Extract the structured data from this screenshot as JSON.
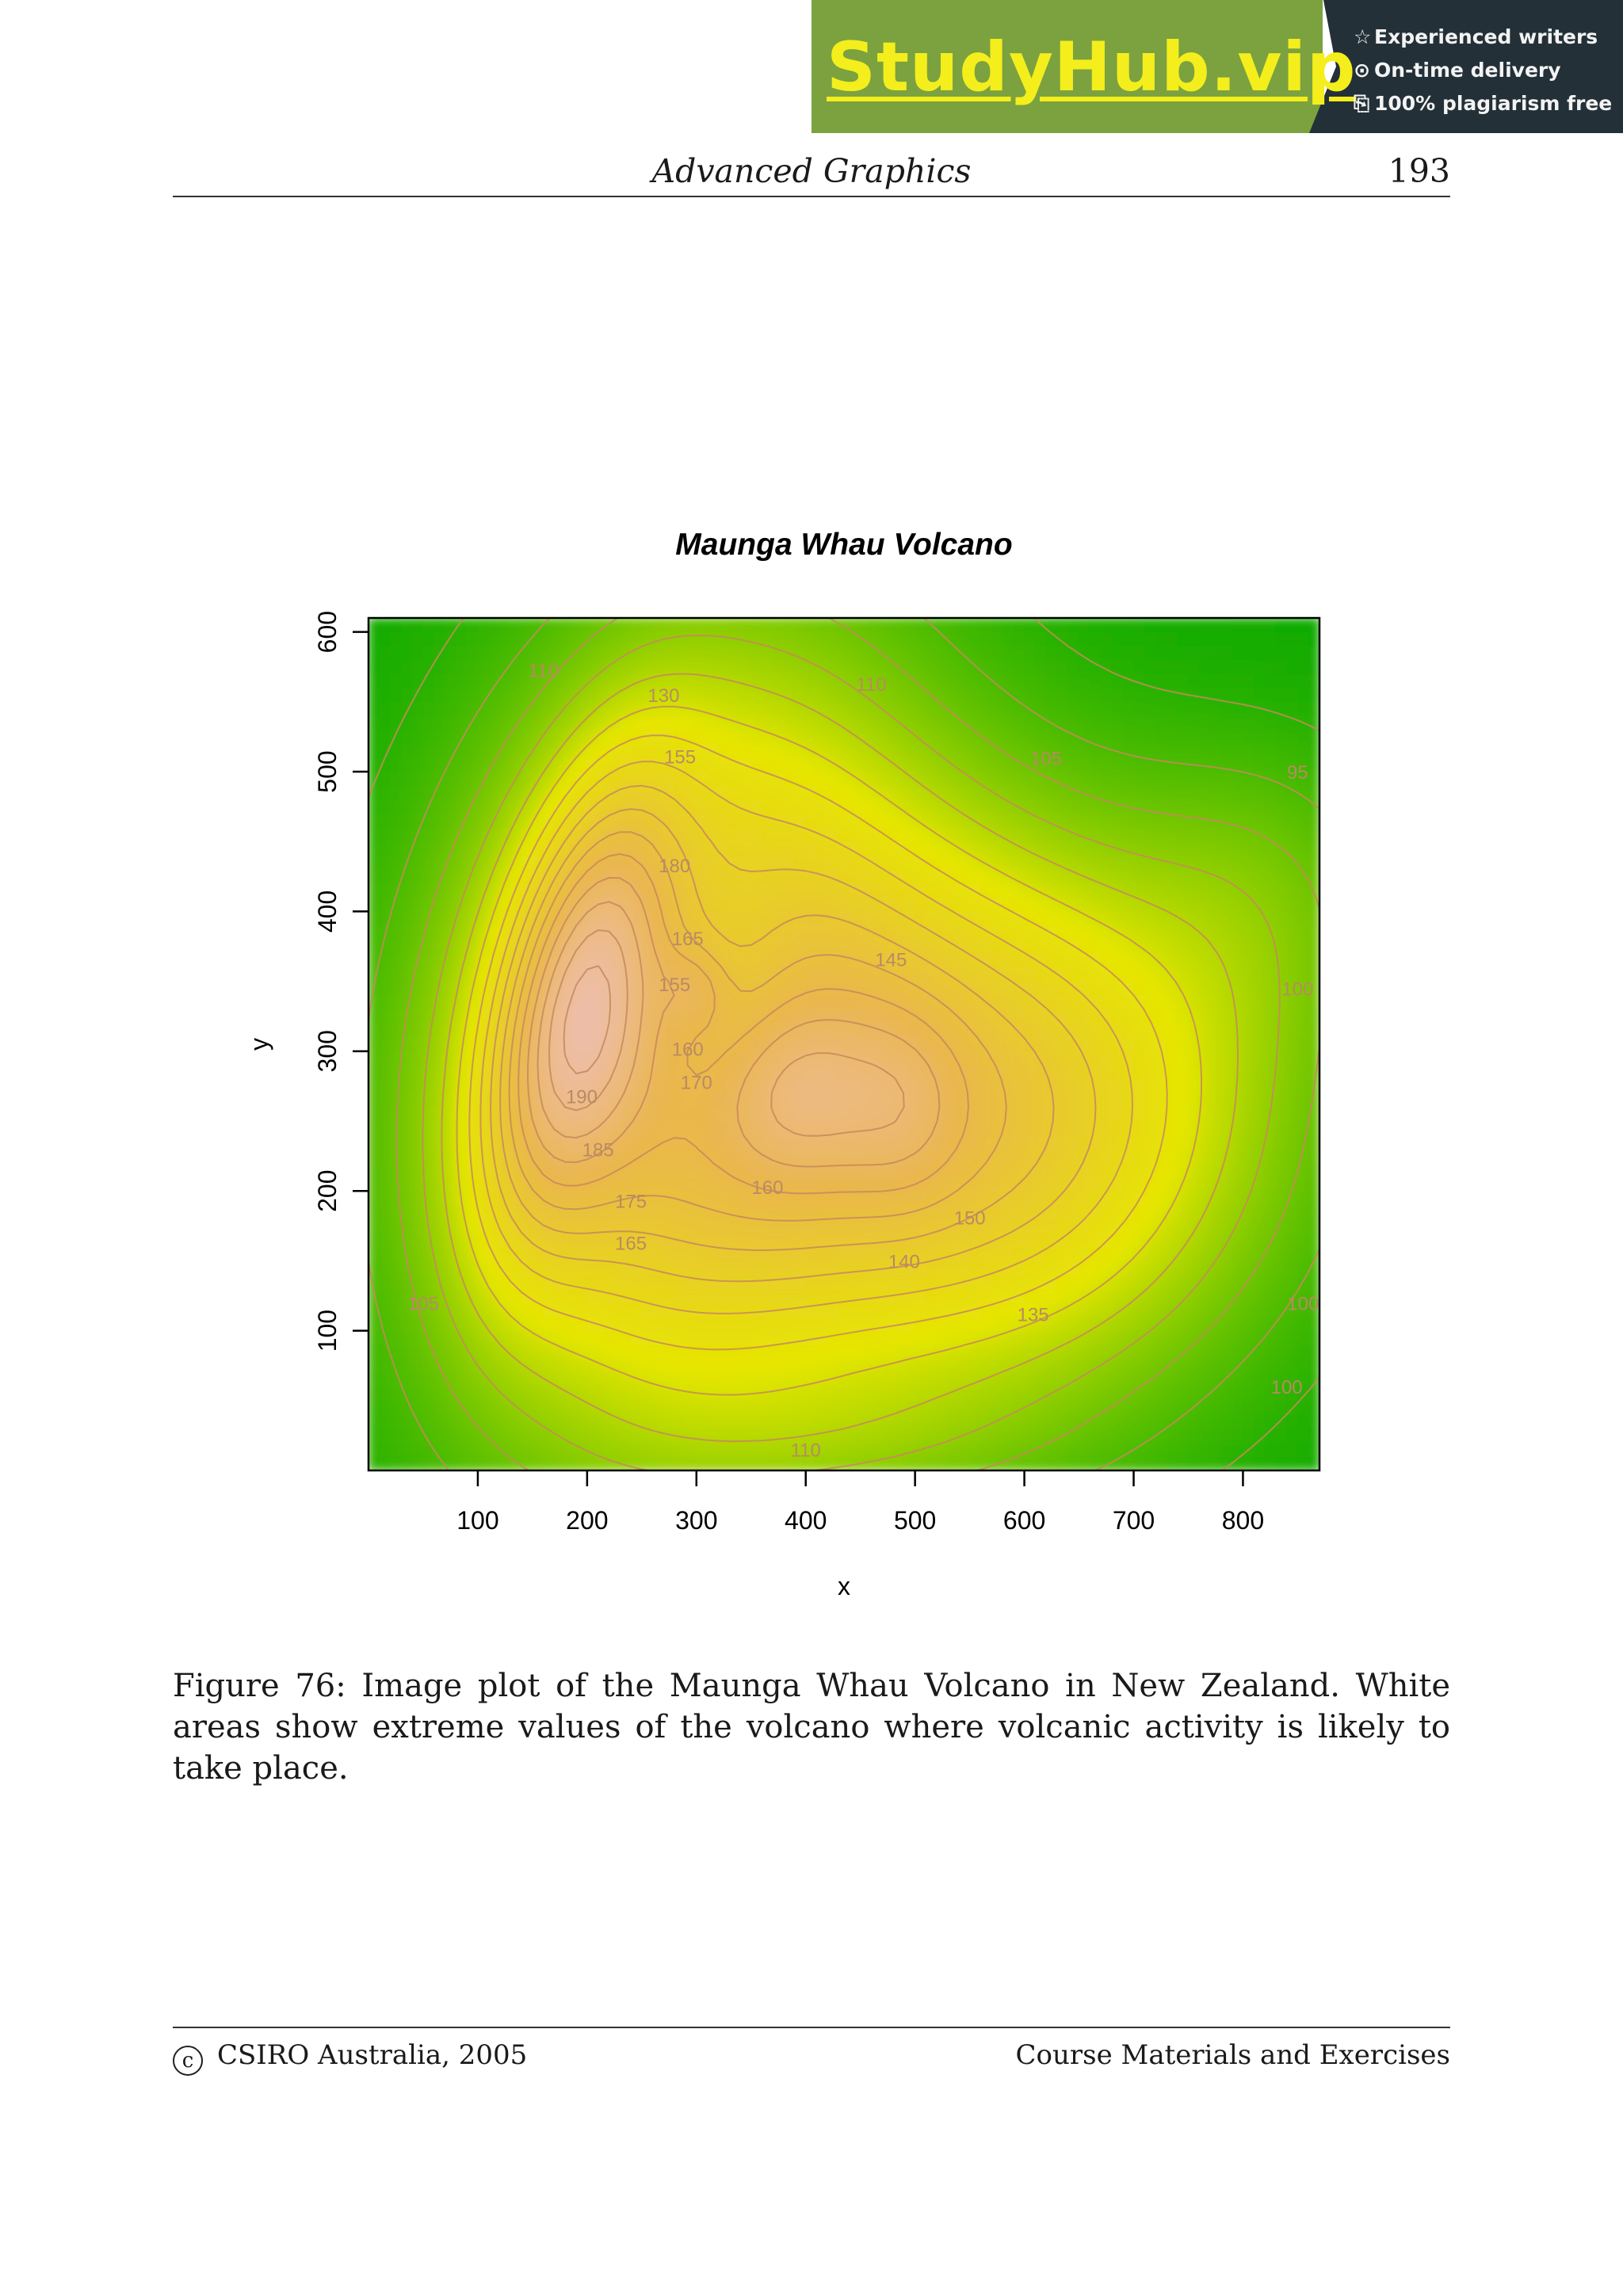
{
  "watermark": {
    "brand": "StudyHub.vip",
    "perks": [
      {
        "icon": "star-outline-icon",
        "glyph": "☆",
        "label": "Experienced writers"
      },
      {
        "icon": "clock-icon",
        "glyph": "⊙",
        "label": "On-time delivery"
      },
      {
        "icon": "copy-icon",
        "glyph": "⎘",
        "label": "100% plagiarism free"
      }
    ]
  },
  "header": {
    "title": "Advanced Graphics",
    "page_number": "193"
  },
  "chart_data": {
    "type": "heatmap",
    "title": "Maunga Whau Volcano",
    "xlabel": "x",
    "ylabel": "y",
    "xlim": [
      0,
      870
    ],
    "ylim": [
      0,
      610
    ],
    "xticks": [
      100,
      200,
      300,
      400,
      500,
      600,
      700,
      800
    ],
    "yticks": [
      100,
      200,
      300,
      400,
      500,
      600
    ],
    "value_range": [
      94,
      195
    ],
    "colormap": [
      "#00a600",
      "#e6e600",
      "#eab64e",
      "#eebeb0",
      "#f2f2f2"
    ],
    "contour_color": "#c68a5c",
    "contour_labels": [
      {
        "label": "110",
        "x": 160,
        "y": 573
      },
      {
        "label": "130",
        "x": 270,
        "y": 555
      },
      {
        "label": "110",
        "x": 460,
        "y": 563
      },
      {
        "label": "155",
        "x": 285,
        "y": 511
      },
      {
        "label": "105",
        "x": 620,
        "y": 510
      },
      {
        "label": "95",
        "x": 850,
        "y": 500
      },
      {
        "label": "180",
        "x": 280,
        "y": 433
      },
      {
        "label": "165",
        "x": 292,
        "y": 381
      },
      {
        "label": "145",
        "x": 478,
        "y": 366
      },
      {
        "label": "100",
        "x": 850,
        "y": 345
      },
      {
        "label": "155",
        "x": 280,
        "y": 348
      },
      {
        "label": "160",
        "x": 292,
        "y": 302
      },
      {
        "label": "170",
        "x": 300,
        "y": 278
      },
      {
        "label": "190",
        "x": 195,
        "y": 268
      },
      {
        "label": "185",
        "x": 210,
        "y": 230
      },
      {
        "label": "160",
        "x": 365,
        "y": 203
      },
      {
        "label": "175",
        "x": 240,
        "y": 193
      },
      {
        "label": "150",
        "x": 550,
        "y": 181
      },
      {
        "label": "165",
        "x": 240,
        "y": 163
      },
      {
        "label": "140",
        "x": 490,
        "y": 150
      },
      {
        "label": "105",
        "x": 50,
        "y": 120
      },
      {
        "label": "100",
        "x": 855,
        "y": 120
      },
      {
        "label": "135",
        "x": 608,
        "y": 112
      },
      {
        "label": "100",
        "x": 840,
        "y": 60
      },
      {
        "label": "110",
        "x": 400,
        "y": 15
      }
    ]
  },
  "caption": "Figure 76: Image plot of the Maunga Whau Volcano in New Zealand. White areas show extreme values of the volcano where volcanic activity is likely to take place.",
  "footer": {
    "copyright_symbol": "c",
    "left": "CSIRO Australia, 2005",
    "right": "Course Materials and Exercises"
  }
}
